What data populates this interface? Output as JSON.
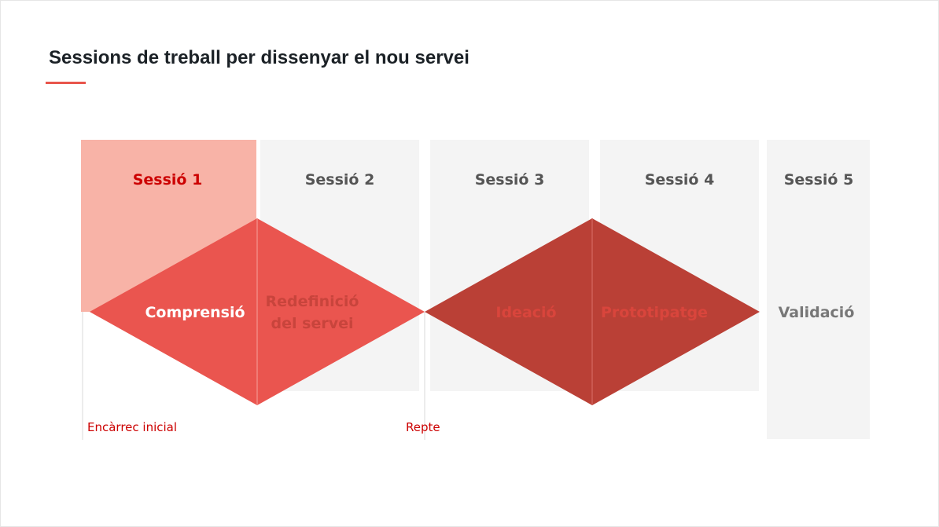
{
  "title": "Sessions de treball per dissenyar el nou servei",
  "colors": {
    "accent": "#e8554c",
    "active_column": "#f8b3a7",
    "column_bg": "#f4f4f4",
    "diamond_light": "#ea554f",
    "diamond_dark": "#ba4036",
    "active_text": "#cc0000",
    "muted_text": "#555555"
  },
  "sessions": [
    {
      "label": "Sessió 1",
      "active": true
    },
    {
      "label": "Sessió 2",
      "active": false
    },
    {
      "label": "Sessió 3",
      "active": false
    },
    {
      "label": "Sessió 4",
      "active": false
    },
    {
      "label": "Sessió 5",
      "active": false
    }
  ],
  "phases": [
    {
      "lines": [
        "Comprensió"
      ]
    },
    {
      "lines": [
        "Redefinició",
        "del servei"
      ]
    },
    {
      "lines": [
        "Ideació"
      ]
    },
    {
      "lines": [
        "Prototipatge"
      ]
    },
    {
      "lines": [
        "Validació"
      ]
    }
  ],
  "milestones": [
    {
      "label": "Encàrrec inicial"
    },
    {
      "label": "Repte"
    }
  ]
}
